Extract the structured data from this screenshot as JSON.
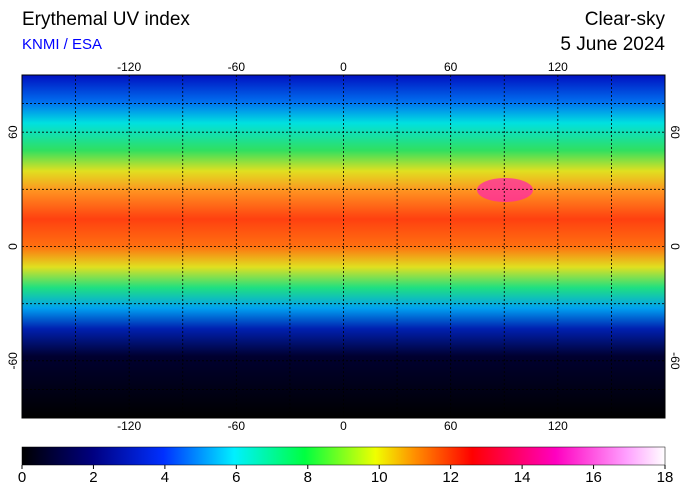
{
  "header": {
    "title": "Erythemal UV index",
    "source": "KNMI / ESA",
    "condition": "Clear-sky",
    "date": "5 June 2024"
  },
  "map": {
    "lon_ticks": [
      -120,
      -60,
      0,
      60,
      120
    ],
    "lat_ticks": [
      60,
      0,
      -60
    ],
    "lon_range": [
      -180,
      180
    ],
    "lat_range": [
      90,
      -90
    ]
  },
  "colorbar": {
    "range": [
      0,
      18
    ],
    "ticks": [
      0,
      2,
      4,
      6,
      8,
      10,
      12,
      14,
      16,
      18
    ]
  }
}
